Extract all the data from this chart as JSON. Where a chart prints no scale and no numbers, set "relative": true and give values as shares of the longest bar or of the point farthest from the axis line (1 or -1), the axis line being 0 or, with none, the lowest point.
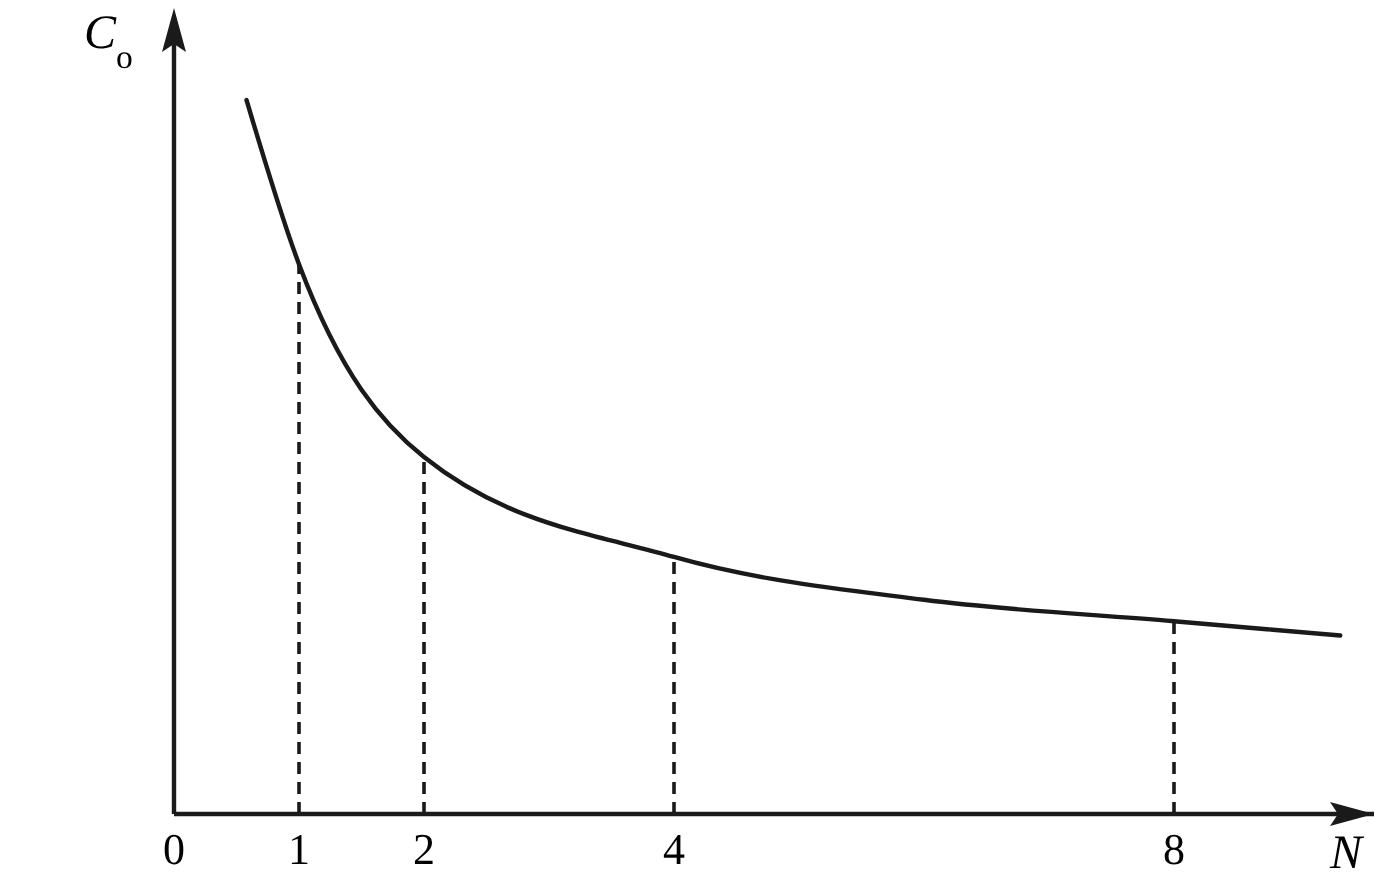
{
  "chart_data": {
    "type": "line",
    "relative": true,
    "xlabel": "N",
    "ylabel": "C$_{o}$",
    "x": [
      0.58,
      1,
      2,
      4,
      6,
      8,
      9.33
    ],
    "series": [
      {
        "color": "#1a1a1a",
        "values": [
          1,
          0.77,
          0.5,
          0.36,
          0.3,
          0.27,
          0.25
        ]
      }
    ],
    "xlim": [
      0,
      9.6
    ],
    "xticks": [
      0,
      1,
      2,
      4,
      8
    ],
    "ref_lines": [
      {
        "axis": "x",
        "value": 1,
        "line_style": "dashed",
        "color": "#1a1a1a"
      },
      {
        "axis": "x",
        "value": 2,
        "line_style": "dashed",
        "color": "#1a1a1a"
      },
      {
        "axis": "x",
        "value": 4,
        "line_style": "dashed",
        "color": "#1a1a1a"
      },
      {
        "axis": "x",
        "value": 8,
        "line_style": "dashed",
        "color": "#1a1a1a"
      }
    ],
    "line_style": "solid",
    "marker": "none",
    "grid": false
  }
}
